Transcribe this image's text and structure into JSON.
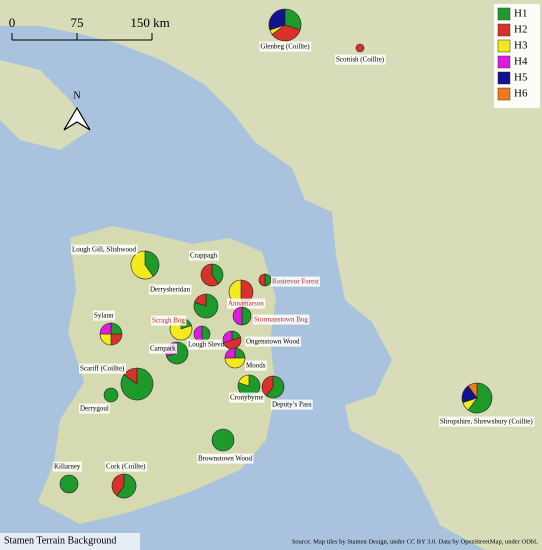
{
  "map": {
    "scale_labels": [
      "0",
      "75",
      "150 km"
    ],
    "north": "N",
    "legend": [
      {
        "name": "H1",
        "color": "#1e9a2a"
      },
      {
        "name": "H2",
        "color": "#d8322a"
      },
      {
        "name": "H3",
        "color": "#f2ea1a"
      },
      {
        "name": "H4",
        "color": "#e01adf"
      },
      {
        "name": "H5",
        "color": "#13138f"
      },
      {
        "name": "H6",
        "color": "#f07a1e"
      }
    ],
    "sites": [
      {
        "name": "Glenbeg (Coillte)",
        "label_color": "#000000",
        "values": [
          30,
          35,
          5,
          0,
          30,
          0
        ]
      },
      {
        "name": "Scottish (Coillte)",
        "label_color": "#000000",
        "values": [
          0,
          100,
          0,
          0,
          0,
          0
        ]
      },
      {
        "name": "Lough Gill, Slishwood",
        "label_color": "#000000",
        "values": [
          40,
          0,
          60,
          0,
          0,
          0
        ]
      },
      {
        "name": "Crappagh",
        "label_color": "#000000",
        "values": [
          40,
          60,
          0,
          0,
          0,
          0
        ]
      },
      {
        "name": "Rostrevor Forest",
        "label_color": "#c62828",
        "values": [
          50,
          50,
          0,
          0,
          0,
          0
        ]
      },
      {
        "name": "Annamarson",
        "label_color": "#c62828",
        "values": [
          0,
          50,
          50,
          0,
          0,
          0
        ]
      },
      {
        "name": "Derrysheridan",
        "label_color": "#000000",
        "values": [
          80,
          20,
          0,
          0,
          0,
          0
        ]
      },
      {
        "name": "Stormanstown Bog",
        "label_color": "#c62828",
        "values": [
          50,
          0,
          0,
          50,
          0,
          0
        ]
      },
      {
        "name": "Sylaun",
        "label_color": "#000000",
        "values": [
          25,
          25,
          25,
          25,
          0,
          0
        ]
      },
      {
        "name": "Scragh Bog",
        "label_color": "#c62828",
        "values": [
          20,
          0,
          80,
          0,
          0,
          0
        ]
      },
      {
        "name": "Lough Slevin",
        "label_color": "#000000",
        "values": [
          50,
          0,
          0,
          50,
          0,
          0
        ]
      },
      {
        "name": "Ongenstown Wood",
        "label_color": "#000000",
        "values": [
          20,
          50,
          0,
          30,
          0,
          0
        ]
      },
      {
        "name": "Campark",
        "label_color": "#000000",
        "values": [
          70,
          0,
          0,
          30,
          0,
          0
        ]
      },
      {
        "name": "Moods",
        "label_color": "#000000",
        "values": [
          25,
          0,
          50,
          25,
          0,
          0
        ]
      },
      {
        "name": "Scariff (Coillte)",
        "label_color": "#000000",
        "values": [
          85,
          15,
          0,
          0,
          0,
          0
        ]
      },
      {
        "name": "Cronybyrne",
        "label_color": "#000000",
        "values": [
          80,
          0,
          20,
          0,
          0,
          0
        ]
      },
      {
        "name": "Deputy’s Pass",
        "label_color": "#000000",
        "values": [
          60,
          40,
          0,
          0,
          0,
          0
        ]
      },
      {
        "name": "Derrygoul",
        "label_color": "#000000",
        "values": [
          100,
          0,
          0,
          0,
          0,
          0
        ]
      },
      {
        "name": "Brownstown Wood",
        "label_color": "#000000",
        "values": [
          100,
          0,
          0,
          0,
          0,
          0
        ]
      },
      {
        "name": "Shropshire, Shrewsbury (Coillte)",
        "label_color": "#000000",
        "values": [
          60,
          0,
          10,
          0,
          20,
          10
        ]
      },
      {
        "name": "Killarney",
        "label_color": "#000000",
        "values": [
          100,
          0,
          0,
          0,
          0,
          0
        ]
      },
      {
        "name": "Cork (Coillte)",
        "label_color": "#000000",
        "values": [
          60,
          40,
          0,
          0,
          0,
          0
        ]
      }
    ],
    "background_credit": "Stamen Terrain Background",
    "source": "Source. Map tiles by Stamen Design, under CC BY 3.0. Data by OpenStreetMap, under ODbL"
  }
}
